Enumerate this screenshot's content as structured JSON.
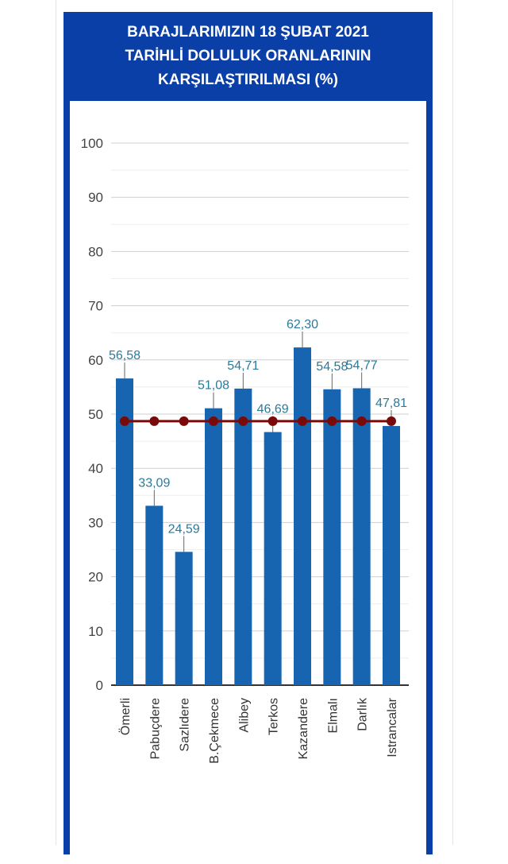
{
  "chart_data": {
    "type": "bar",
    "title_lines": [
      "BARAJLARIMIZIN 18 ŞUBAT 2021",
      "TARİHLİ DOLULUK ORANLARININ",
      "KARŞILAŞTIRILMASI (%)"
    ],
    "categories": [
      "Ömerli",
      "Pabuçdere",
      "Sazlıdere",
      "B.Çekmece",
      "Alibey",
      "Terkos",
      "Kazandere",
      "Elmalı",
      "Darlık",
      "Istrancalar"
    ],
    "values": [
      56.58,
      33.09,
      24.59,
      51.08,
      54.71,
      46.69,
      62.3,
      54.58,
      54.77,
      47.81
    ],
    "data_labels": [
      "56,58",
      "33,09",
      "24,59",
      "51,08",
      "54,71",
      "46,69",
      "62,30",
      "54,58",
      "54,77",
      "47,81"
    ],
    "average_line": {
      "type": "line",
      "value": 48.7,
      "color": "#7a0a0a"
    },
    "ylim": [
      0,
      100
    ],
    "yticks": [
      0,
      10,
      20,
      30,
      40,
      50,
      60,
      70,
      80,
      90,
      100
    ],
    "grid": true,
    "legend": "none",
    "colors": {
      "bar": "#1764b0",
      "label": "#2b7a9a",
      "frame": "#0a3fa8"
    }
  }
}
